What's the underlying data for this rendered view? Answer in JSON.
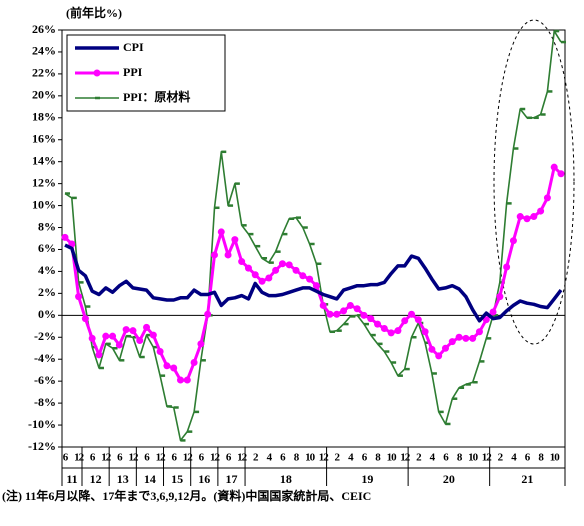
{
  "chart_data": {
    "type": "line",
    "y_axis_label": "(前年比%)",
    "note": "(注) 11年6月以降、17年まで3,6,9,12月。(資料)中国国家統計局、CEIC",
    "categories": [
      "6",
      null,
      "12",
      null,
      "6",
      null,
      "12",
      null,
      "6",
      null,
      "12",
      null,
      "6",
      null,
      "12",
      null,
      "6",
      null,
      "12",
      null,
      "6",
      null,
      "12",
      null,
      "6",
      null,
      "12",
      null,
      "2",
      null,
      "4",
      null,
      "6",
      null,
      "8",
      null,
      "10",
      null,
      "12",
      null,
      "2",
      null,
      "4",
      null,
      "6",
      null,
      "8",
      null,
      "10",
      null,
      "12",
      null,
      "2",
      null,
      "4",
      null,
      "6",
      null,
      "8",
      null,
      "10",
      null,
      "12",
      null,
      "2",
      null,
      "4",
      null,
      "6",
      null,
      "8",
      null,
      "10",
      null
    ],
    "year_groups": [
      {
        "label": "11",
        "count": 3
      },
      {
        "label": "12",
        "count": 4
      },
      {
        "label": "13",
        "count": 4
      },
      {
        "label": "14",
        "count": 4
      },
      {
        "label": "15",
        "count": 4
      },
      {
        "label": "16",
        "count": 4
      },
      {
        "label": "17",
        "count": 4
      },
      {
        "label": "18",
        "count": 12
      },
      {
        "label": "19",
        "count": 12
      },
      {
        "label": "20",
        "count": 12
      },
      {
        "label": "21",
        "count": 11
      }
    ],
    "series": [
      {
        "name": "CPI",
        "color": "#000080",
        "marker": "none",
        "values": [
          6.4,
          6.1,
          4.1,
          3.6,
          2.2,
          1.9,
          2.5,
          2.1,
          2.7,
          3.1,
          2.5,
          2.4,
          2.3,
          1.6,
          1.5,
          1.4,
          1.4,
          1.6,
          1.6,
          2.3,
          1.9,
          1.9,
          2.1,
          0.9,
          1.5,
          1.6,
          1.8,
          1.5,
          2.9,
          2.1,
          1.8,
          1.8,
          1.9,
          2.1,
          2.3,
          2.5,
          2.5,
          2.2,
          1.9,
          1.7,
          1.5,
          2.3,
          2.5,
          2.7,
          2.7,
          2.8,
          2.8,
          3.0,
          3.8,
          4.5,
          4.5,
          5.4,
          5.2,
          4.3,
          3.3,
          2.4,
          2.5,
          2.7,
          2.4,
          1.7,
          0.5,
          -0.5,
          0.2,
          -0.3,
          -0.2,
          0.4,
          0.9,
          1.3,
          1.1,
          1.0,
          0.8,
          0.7,
          1.5,
          2.3
        ]
      },
      {
        "name": "PPI",
        "color": "#ff00ff",
        "marker": "circle",
        "values": [
          7.1,
          6.5,
          1.7,
          -0.3,
          -2.1,
          -3.6,
          -1.9,
          -1.9,
          -2.7,
          -1.3,
          -1.4,
          -2.3,
          -1.1,
          -1.8,
          -3.3,
          -4.6,
          -4.8,
          -5.9,
          -5.9,
          -4.3,
          -2.6,
          0.1,
          5.5,
          7.6,
          5.5,
          6.9,
          4.9,
          4.3,
          3.7,
          3.1,
          3.4,
          4.1,
          4.7,
          4.6,
          4.1,
          3.6,
          3.3,
          2.7,
          0.9,
          0.1,
          0.1,
          0.4,
          0.9,
          0.6,
          0.0,
          -0.3,
          -0.8,
          -1.2,
          -1.6,
          -1.4,
          -0.5,
          0.1,
          -0.4,
          -1.5,
          -3.1,
          -3.7,
          -3.0,
          -2.4,
          -2.0,
          -2.1,
          -2.1,
          -1.5,
          -0.4,
          0.3,
          1.7,
          4.4,
          6.8,
          9.0,
          8.8,
          9.0,
          9.5,
          10.7,
          13.5,
          12.9
        ]
      },
      {
        "name": "PPI：原材料",
        "color": "#2e7d32",
        "marker": "dash",
        "values": [
          11.1,
          10.7,
          3.0,
          0.8,
          -2.9,
          -4.8,
          -2.6,
          -3.0,
          -4.1,
          -1.9,
          -2.0,
          -3.8,
          -1.8,
          -2.9,
          -5.5,
          -8.3,
          -8.4,
          -11.4,
          -10.6,
          -8.8,
          -4.1,
          0.0,
          9.8,
          14.9,
          10.0,
          12.0,
          8.2,
          7.4,
          6.3,
          5.2,
          4.8,
          5.8,
          7.4,
          8.8,
          8.9,
          8.0,
          6.5,
          4.7,
          1.0,
          -1.5,
          -1.4,
          -0.8,
          -0.1,
          0.0,
          -0.8,
          -1.8,
          -2.6,
          -3.3,
          -4.3,
          -5.5,
          -4.9,
          -2.0,
          -0.7,
          -2.5,
          -5.3,
          -8.8,
          -9.9,
          -7.6,
          -6.6,
          -6.3,
          -6.1,
          -4.2,
          -2.1,
          0.0,
          3.0,
          10.2,
          15.2,
          18.8,
          18.0,
          18.0,
          18.3,
          20.4,
          25.9,
          24.9
        ]
      }
    ],
    "ylim": [
      -12,
      26
    ],
    "yticks": [
      {
        "value": -12,
        "label": "-12%"
      },
      {
        "value": -10,
        "label": "-10%"
      },
      {
        "value": -8,
        "label": "-8%"
      },
      {
        "value": -6,
        "label": "-6%"
      },
      {
        "value": -4,
        "label": "-4%"
      },
      {
        "value": -2,
        "label": "-2%"
      },
      {
        "value": 0,
        "label": "0%"
      },
      {
        "value": 2,
        "label": "2%"
      },
      {
        "value": 4,
        "label": "4%"
      },
      {
        "value": 6,
        "label": "6%"
      },
      {
        "value": 8,
        "label": "8%"
      },
      {
        "value": 10,
        "label": "10%"
      },
      {
        "value": 12,
        "label": "12%"
      },
      {
        "value": 14,
        "label": "14%"
      },
      {
        "value": 16,
        "label": "16%"
      },
      {
        "value": 18,
        "label": "18%"
      },
      {
        "value": 20,
        "label": "20%"
      },
      {
        "value": 22,
        "label": "22%"
      },
      {
        "value": 24,
        "label": "24%"
      },
      {
        "value": 26,
        "label": "26%"
      }
    ],
    "legend": "upper left"
  }
}
